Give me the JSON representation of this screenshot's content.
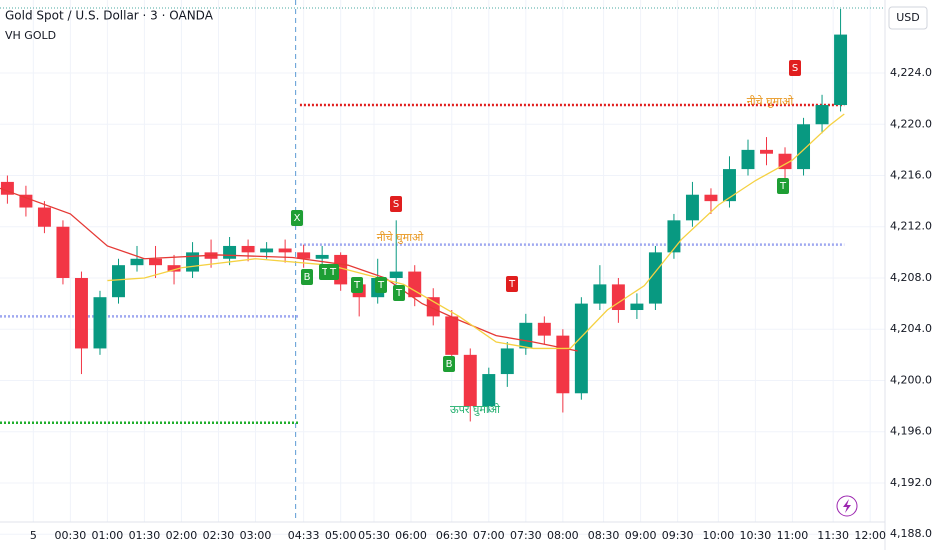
{
  "chart_data": {
    "type": "candlestick",
    "title": "Gold Spot / U.S. Dollar · 3 · OANDA",
    "subtitle": "VH GOLD",
    "currency": "USD",
    "up_color": "#089981",
    "down_color": "#f23645",
    "x": [
      -7,
      -2,
      3,
      8,
      13,
      18,
      23,
      28,
      33,
      38,
      43,
      48,
      53,
      58,
      63,
      68,
      73,
      78,
      83,
      88,
      93,
      98,
      103,
      108,
      113,
      118,
      123,
      128,
      133,
      138,
      143,
      148,
      153,
      158,
      163,
      168,
      173,
      178,
      183,
      188,
      193,
      198,
      203,
      208,
      213,
      218
    ],
    "open": [
      4215.5,
      4214.5,
      4213.5,
      4212,
      4208,
      4202.5,
      4206.5,
      4209,
      4209.5,
      4209,
      4208.5,
      4210,
      4209.5,
      4210.5,
      4210,
      4210.3,
      4210,
      4209.5,
      4209.8,
      4207.5,
      4206.5,
      4208,
      4208.5,
      4206.5,
      4205,
      4202,
      4198,
      4200.5,
      4202.5,
      4204.5,
      4203.5,
      4199,
      4206,
      4207.5,
      4205.5,
      4206,
      4210,
      4212.5,
      4214.5,
      4214,
      4216.5,
      4218,
      4217.7,
      4216.5,
      4220,
      4221.5
    ],
    "high": [
      4216,
      4215.2,
      4214,
      4212.5,
      4208.5,
      4207,
      4209.5,
      4210.5,
      4210.5,
      4209.8,
      4210.8,
      4211,
      4211.2,
      4211,
      4210.8,
      4211,
      4210.6,
      4210.5,
      4210,
      4208,
      4209.5,
      4212.5,
      4209,
      4207.2,
      4205.5,
      4202.5,
      4201,
      4203,
      4205.2,
      4205,
      4204,
      4206.5,
      4209,
      4208,
      4206.8,
      4210.5,
      4213,
      4215.5,
      4215,
      4217.5,
      4218.8,
      4219,
      4218.2,
      4220.5,
      4222.3,
      4229
    ],
    "low": [
      4213.8,
      4212.8,
      4211.5,
      4207.5,
      4200.5,
      4202,
      4206,
      4208.5,
      4208,
      4207.5,
      4208,
      4208.8,
      4209,
      4209.3,
      4209.5,
      4209.2,
      4208.8,
      4208.5,
      4207,
      4205,
      4206,
      4207.5,
      4205.8,
      4204.3,
      4201.5,
      4196.8,
      4197.5,
      4199.5,
      4202,
      4202.8,
      4197.5,
      4198.5,
      4205.5,
      4204.5,
      4204.8,
      4205.5,
      4209.5,
      4212,
      4213,
      4213.5,
      4216,
      4216.8,
      4215,
      4216,
      4219.3,
      4221
    ],
    "close": [
      4214.5,
      4213.5,
      4212,
      4208,
      4202.5,
      4206.5,
      4209,
      4209.5,
      4209,
      4208.5,
      4210,
      4209.5,
      4210.5,
      4210,
      4210.3,
      4210,
      4209.5,
      4209.8,
      4207.5,
      4206.5,
      4208,
      4208.5,
      4206.5,
      4205,
      4202,
      4198,
      4200.5,
      4202.5,
      4204.5,
      4203.5,
      4199,
      4206,
      4207.5,
      4205.5,
      4206,
      4210,
      4212.5,
      4214.5,
      4214,
      4216.5,
      4218,
      4217.7,
      4216.5,
      4220,
      4221.5,
      4227
    ],
    "lines": [
      {
        "color": "#e53935",
        "x": [
          -9,
          10,
          20,
          30,
          50,
          70,
          85,
          95,
          105,
          115,
          125,
          135,
          147
        ],
        "values": [
          4215,
          4213,
          4210.5,
          4209.5,
          4209.8,
          4209.6,
          4209,
          4208,
          4206,
          4204.7,
          4203.5,
          4203,
          4202.3
        ]
      },
      {
        "color": "#f5d142",
        "x": [
          20,
          30,
          40,
          60,
          80,
          100,
          115,
          125,
          135,
          145,
          155,
          165,
          175,
          185,
          195,
          205,
          215,
          219
        ],
        "values": [
          4207.8,
          4208,
          4208.8,
          4209.5,
          4209,
          4207.5,
          4205,
          4203,
          4202.5,
          4202.5,
          4205.5,
          4207.4,
          4211,
          4213.7,
          4215.6,
          4217.2,
          4219.9,
          4220.8
        ]
      }
    ],
    "levels": [
      {
        "color": "#e01e1e",
        "value": 4221.5,
        "x": [
          72,
          219
        ]
      },
      {
        "color": "#9fa8f0",
        "value": 4210.6,
        "x": [
          72,
          219
        ]
      },
      {
        "color": "#9fa8f0",
        "value": 4205,
        "x": [
          -9,
          72
        ]
      },
      {
        "color": "#1fae2c",
        "value": 4196.7,
        "x": [
          -9,
          72
        ]
      }
    ],
    "signals": [
      "X",
      "B",
      "T",
      "T",
      "T",
      "T",
      "T",
      "S",
      "B",
      "T",
      "S",
      "T"
    ],
    "notes": [
      "नीचे घुमाओ",
      "ऊपर घुमाओ",
      "नीचे घुमाओ"
    ],
    "xlim": [
      -9,
      230
    ],
    "ylim": [
      4187,
      4229.7
    ],
    "xticks": [
      {
        "value": 0,
        "label": "5"
      },
      {
        "value": 10,
        "label": "00:30"
      },
      {
        "value": 20,
        "label": "01:00"
      },
      {
        "value": 30,
        "label": "01:30"
      },
      {
        "value": 40,
        "label": "02:00"
      },
      {
        "value": 50,
        "label": "02:30"
      },
      {
        "value": 60,
        "label": "03:00"
      },
      {
        "value": 73,
        "label": "04:33"
      },
      {
        "value": 83,
        "label": "05:00"
      },
      {
        "value": 92,
        "label": "05:30"
      },
      {
        "value": 102,
        "label": "06:00"
      },
      {
        "value": 113,
        "label": "06:30"
      },
      {
        "value": 123,
        "label": "07:00"
      },
      {
        "value": 133,
        "label": "07:30"
      },
      {
        "value": 143,
        "label": "08:00"
      },
      {
        "value": 154,
        "label": "08:30"
      },
      {
        "value": 164,
        "label": "09:00"
      },
      {
        "value": 174,
        "label": "09:30"
      },
      {
        "value": 185,
        "label": "10:00"
      },
      {
        "value": 195,
        "label": "10:30"
      },
      {
        "value": 205,
        "label": "11:00"
      },
      {
        "value": 216,
        "label": "11:30"
      },
      {
        "value": 226,
        "label": "12:00"
      }
    ],
    "yticks": [
      {
        "value": 4188,
        "label": "4,188.000"
      },
      {
        "value": 4192,
        "label": "4,192.000"
      },
      {
        "value": 4196,
        "label": "4,196.000"
      },
      {
        "value": 4200,
        "label": "4,200.000"
      },
      {
        "value": 4204,
        "label": "4,204.000"
      },
      {
        "value": 4208,
        "label": "4,208.000"
      },
      {
        "value": 4212,
        "label": "4,212.000"
      },
      {
        "value": 4216,
        "label": "4,216.000"
      },
      {
        "value": 4220,
        "label": "4,220.000"
      },
      {
        "value": 4224,
        "label": "4,224.000"
      }
    ],
    "grid": true
  }
}
